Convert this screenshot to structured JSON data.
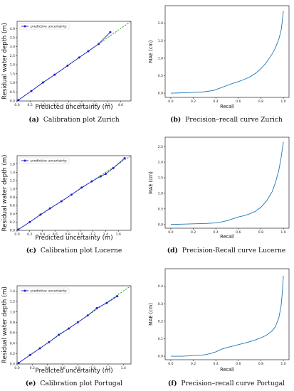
{
  "chart_data": [
    {
      "panel_id": "a",
      "type": "line",
      "xlabel": "Predicted uncertainty (m)",
      "ylabel": "Residual water depth (m)",
      "xlim": [
        0,
        4.4
      ],
      "ylim": [
        0,
        4.4
      ],
      "xticks": [
        "0.0",
        "0.5",
        "1.0",
        "1.5",
        "2.0",
        "2.5",
        "3.0",
        "3.5",
        "4.0"
      ],
      "yticks": [
        "0.0",
        "0.5",
        "1.0",
        "1.5",
        "2.0",
        "2.5",
        "3.0",
        "3.5",
        "4.0"
      ],
      "legend": "predictive uncertainty",
      "legend_position": "top-left",
      "series": [
        {
          "name": "predictive uncertainty",
          "color": "#1f1fcc",
          "x": [
            0.05,
            0.55,
            1.0,
            1.45,
            1.95,
            2.4,
            2.75,
            3.15,
            3.6
          ],
          "y": [
            0.05,
            0.55,
            1.02,
            1.45,
            1.95,
            2.4,
            2.75,
            3.15,
            3.8
          ]
        }
      ],
      "reference_line_color": "#2ca02c",
      "caption_label": "(a)",
      "caption": "Calibration plot Zurich"
    },
    {
      "panel_id": "b",
      "type": "line",
      "xlabel": "Recall",
      "ylabel": "MAE (cm)",
      "xlim": [
        -0.05,
        1.05
      ],
      "ylim": [
        -0.12,
        2.5
      ],
      "xticks": [
        "0.0",
        "0.2",
        "0.4",
        "0.6",
        "0.8",
        "1.0"
      ],
      "yticks": [
        "0.0",
        "0.5",
        "1.0",
        "1.5",
        "2.0"
      ],
      "series": [
        {
          "color": "#1f77b4",
          "x": [
            0.0,
            0.1,
            0.2,
            0.3,
            0.38,
            0.45,
            0.5,
            0.55,
            0.6,
            0.65,
            0.7,
            0.75,
            0.8,
            0.85,
            0.9,
            0.93,
            0.96,
            0.98,
            0.99,
            1.0
          ],
          "y": [
            0.0,
            0.01,
            0.02,
            0.04,
            0.08,
            0.16,
            0.22,
            0.28,
            0.33,
            0.39,
            0.46,
            0.56,
            0.7,
            0.88,
            1.12,
            1.3,
            1.55,
            1.8,
            2.05,
            2.35
          ]
        }
      ],
      "caption_label": "(b)",
      "caption": "Precision–recall curve Zurich"
    },
    {
      "panel_id": "c",
      "type": "line",
      "xlabel": "Predicted uncertainty (m)",
      "ylabel": "Residual water depth (m)",
      "xlim": [
        0,
        1.8
      ],
      "ylim": [
        0,
        1.8
      ],
      "xticks": [
        "0.0",
        "0.2",
        "0.4",
        "0.6",
        "0.8",
        "1.0",
        "1.2",
        "1.4",
        "1.6"
      ],
      "yticks": [
        "0.0",
        "0.2",
        "0.4",
        "0.6",
        "0.8",
        "1.0",
        "1.2",
        "1.4",
        "1.6"
      ],
      "legend": "predictive uncertainty",
      "legend_position": "top-left",
      "series": [
        {
          "name": "predictive uncertainty",
          "color": "#1f1fcc",
          "x": [
            0.02,
            0.2,
            0.37,
            0.52,
            0.7,
            0.86,
            1.02,
            1.18,
            1.32,
            1.4,
            1.52,
            1.7
          ],
          "y": [
            0.02,
            0.2,
            0.38,
            0.53,
            0.7,
            0.86,
            1.03,
            1.18,
            1.3,
            1.36,
            1.5,
            1.74
          ]
        }
      ],
      "reference_line_color": "#2ca02c",
      "caption_label": "(c)",
      "caption": "Calibration plot Lucerne"
    },
    {
      "panel_id": "d",
      "type": "line",
      "xlabel": "Recall",
      "ylabel": "MAE (cm)",
      "xlim": [
        -0.05,
        1.05
      ],
      "ylim": [
        -0.12,
        2.8
      ],
      "xticks": [
        "0.0",
        "0.2",
        "0.4",
        "0.6",
        "0.8",
        "1.0"
      ],
      "yticks": [
        "0.0",
        "0.5",
        "1.0",
        "1.5",
        "2.0",
        "2.5"
      ],
      "series": [
        {
          "color": "#1f77b4",
          "x": [
            0.0,
            0.1,
            0.2,
            0.3,
            0.4,
            0.45,
            0.5,
            0.55,
            0.6,
            0.65,
            0.7,
            0.75,
            0.8,
            0.85,
            0.9,
            0.93,
            0.96,
            0.98,
            0.99,
            1.0
          ],
          "y": [
            0.0,
            0.01,
            0.02,
            0.03,
            0.05,
            0.08,
            0.12,
            0.18,
            0.24,
            0.28,
            0.34,
            0.42,
            0.55,
            0.75,
            1.05,
            1.35,
            1.75,
            2.15,
            2.4,
            2.65
          ]
        }
      ],
      "caption_label": "(d)",
      "caption": "Precision-Recall curve Lucerne"
    },
    {
      "panel_id": "e",
      "type": "line",
      "xlabel": "Predicted uncertainty (m)",
      "ylabel": "Residual water depth (m)",
      "xlim": [
        0,
        1.5
      ],
      "ylim": [
        0,
        1.5
      ],
      "xticks": [
        "0.0",
        "0.2",
        "0.4",
        "0.6",
        "0.8",
        "1.0",
        "1.2",
        "1.4"
      ],
      "yticks": [
        "0.0",
        "0.2",
        "0.4",
        "0.6",
        "0.8",
        "1.0",
        "1.2",
        "1.4"
      ],
      "legend": "predictive uncertainty",
      "legend_position": "top-left",
      "series": [
        {
          "name": "predictive uncertainty",
          "color": "#1f1fcc",
          "x": [
            0.02,
            0.17,
            0.3,
            0.42,
            0.55,
            0.68,
            0.8,
            0.93,
            1.05,
            1.18,
            1.32
          ],
          "y": [
            0.02,
            0.17,
            0.3,
            0.42,
            0.56,
            0.68,
            0.8,
            0.93,
            1.07,
            1.17,
            1.3
          ]
        }
      ],
      "reference_line_color": "#2ca02c",
      "caption_label": "(e)",
      "caption": "Calibration plot Portugal"
    },
    {
      "panel_id": "f",
      "type": "line",
      "xlabel": "Recall",
      "ylabel": "MAE (cm)",
      "xlim": [
        -0.05,
        1.05
      ],
      "ylim": [
        -0.02,
        0.5
      ],
      "xticks": [
        "0.0",
        "0.2",
        "0.4",
        "0.6",
        "0.8",
        "1.0"
      ],
      "yticks": [
        "0.0",
        "0.1",
        "0.2",
        "0.3",
        "0.4"
      ],
      "series": [
        {
          "color": "#1f77b4",
          "x": [
            0.0,
            0.1,
            0.2,
            0.3,
            0.35,
            0.4,
            0.45,
            0.5,
            0.55,
            0.6,
            0.65,
            0.7,
            0.75,
            0.8,
            0.85,
            0.9,
            0.93,
            0.96,
            0.98,
            0.99,
            1.0
          ],
          "y": [
            0.0,
            0.0,
            0.003,
            0.008,
            0.015,
            0.025,
            0.04,
            0.05,
            0.058,
            0.066,
            0.074,
            0.083,
            0.093,
            0.105,
            0.12,
            0.145,
            0.17,
            0.22,
            0.29,
            0.36,
            0.46
          ]
        }
      ],
      "caption_label": "(f)",
      "caption": "Precision–recall curve Portugal"
    }
  ]
}
